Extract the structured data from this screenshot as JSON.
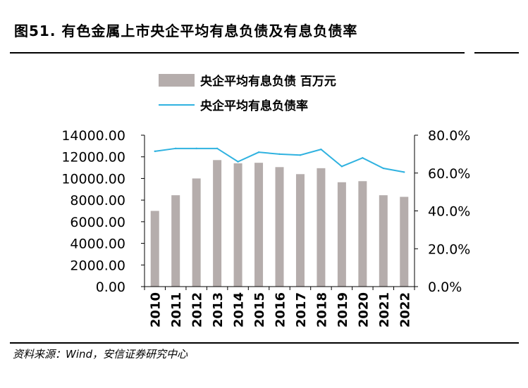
{
  "title": "图51. 有色金属上市央企平均有息负债及有息负债率",
  "source": "资料来源：Wind，安信证券研究中心",
  "colors": {
    "bar": "#b5adac",
    "line": "#2fb2e0",
    "axis": "#000000"
  },
  "chart_data": {
    "type": "bar+line",
    "title": "图51. 有色金属上市央企平均有息负债及有息负债率",
    "categories": [
      "2010",
      "2011",
      "2012",
      "2013",
      "2014",
      "2015",
      "2016",
      "2017",
      "2018",
      "2019",
      "2020",
      "2021",
      "2022"
    ],
    "series": [
      {
        "name": "央企平均有息负债 百万元",
        "type": "bar",
        "axis": "left",
        "values": [
          7000,
          8450,
          10000,
          11700,
          11400,
          11450,
          11050,
          10400,
          10950,
          9650,
          9750,
          8450,
          8300
        ]
      },
      {
        "name": "央企平均有息负债率",
        "type": "line",
        "axis": "right",
        "values": [
          71.5,
          73.0,
          73.0,
          73.0,
          66.0,
          71.0,
          70.0,
          69.5,
          72.5,
          63.5,
          68.0,
          62.5,
          60.5
        ]
      }
    ],
    "y_left": {
      "min": 0,
      "max": 14000,
      "ticks": [
        "0.00",
        "2000.00",
        "4000.00",
        "6000.00",
        "8000.00",
        "10000.00",
        "12000.00",
        "14000.00"
      ]
    },
    "y_right": {
      "min": 0,
      "max": 80,
      "ticks": [
        "0.0%",
        "20.0%",
        "40.0%",
        "60.0%",
        "80.0%"
      ]
    },
    "legend": "top-center",
    "grid": false
  }
}
